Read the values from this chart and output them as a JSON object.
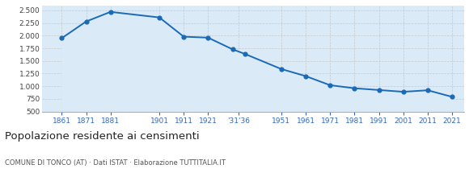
{
  "years": [
    1861,
    1871,
    1881,
    1901,
    1911,
    1921,
    1931,
    1936,
    1951,
    1961,
    1971,
    1981,
    1991,
    2001,
    2011,
    2021
  ],
  "population": [
    1950,
    2280,
    2470,
    2360,
    1980,
    1960,
    1730,
    1640,
    1340,
    1200,
    1020,
    960,
    925,
    890,
    920,
    790
  ],
  "ylim": [
    500,
    2600
  ],
  "yticks": [
    500,
    750,
    1000,
    1250,
    1500,
    1750,
    2000,
    2250,
    2500
  ],
  "line_color": "#1a6ab8",
  "fill_color": "#daeaf7",
  "marker_color": "#1a6ab8",
  "bg_color": "#ffffff",
  "grid_color": "#c8c8c8",
  "tick_color": "#3366bb",
  "x_tick_positions": [
    1861,
    1871,
    1881,
    1901,
    1911,
    1921,
    1933.5,
    1951,
    1961,
    1971,
    1981,
    1991,
    2001,
    2011,
    2021
  ],
  "x_tick_labels": [
    "1861",
    "1871",
    "1881",
    "1901",
    "1911",
    "1921",
    "'31'36",
    "1951",
    "1961",
    "1971",
    "1981",
    "1991",
    "2001",
    "2011",
    "2021"
  ],
  "xlim": [
    1853,
    2026
  ],
  "xlabel_title": "Popolazione residente ai censimenti",
  "subtitle": "COMUNE DI TONCO (AT) · Dati ISTAT · Elaborazione TUTTITALIA.IT"
}
